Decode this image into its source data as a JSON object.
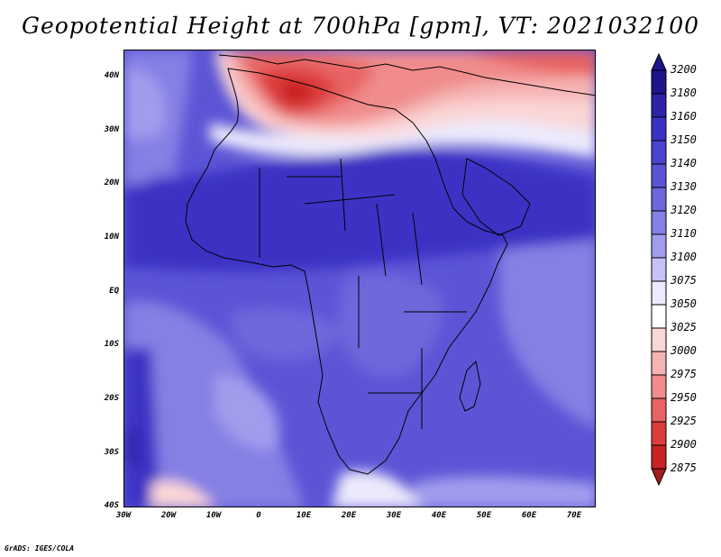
{
  "title": "Geopotential Height at 700hPa [gpm], VT: 2021032100",
  "footer": "GrADS: IGES/COLA",
  "latitude_labels": [
    "40N",
    "30N",
    "20N",
    "10N",
    "EQ",
    "10S",
    "20S",
    "30S",
    "40S"
  ],
  "longitude_labels": [
    "30W",
    "20W",
    "10W",
    "0",
    "10E",
    "20E",
    "30E",
    "40E",
    "50E",
    "60E",
    "70E"
  ],
  "colorbar": {
    "levels": [
      "3200",
      "3180",
      "3160",
      "3150",
      "3140",
      "3130",
      "3120",
      "3110",
      "3100",
      "3075",
      "3050",
      "3025",
      "3000",
      "2975",
      "2950",
      "2925",
      "2900",
      "2875"
    ],
    "colors": [
      "#1f148c",
      "#2d22a8",
      "#3a32c4",
      "#4a44d0",
      "#5b55d6",
      "#6d68dc",
      "#8580e4",
      "#a19ded",
      "#c6c3f4",
      "#eceafc",
      "#ffffff",
      "#fbd6d6",
      "#f6b3b3",
      "#f08c8c",
      "#e86464",
      "#dd3c3c",
      "#c82424",
      "#a61a1a"
    ]
  }
}
